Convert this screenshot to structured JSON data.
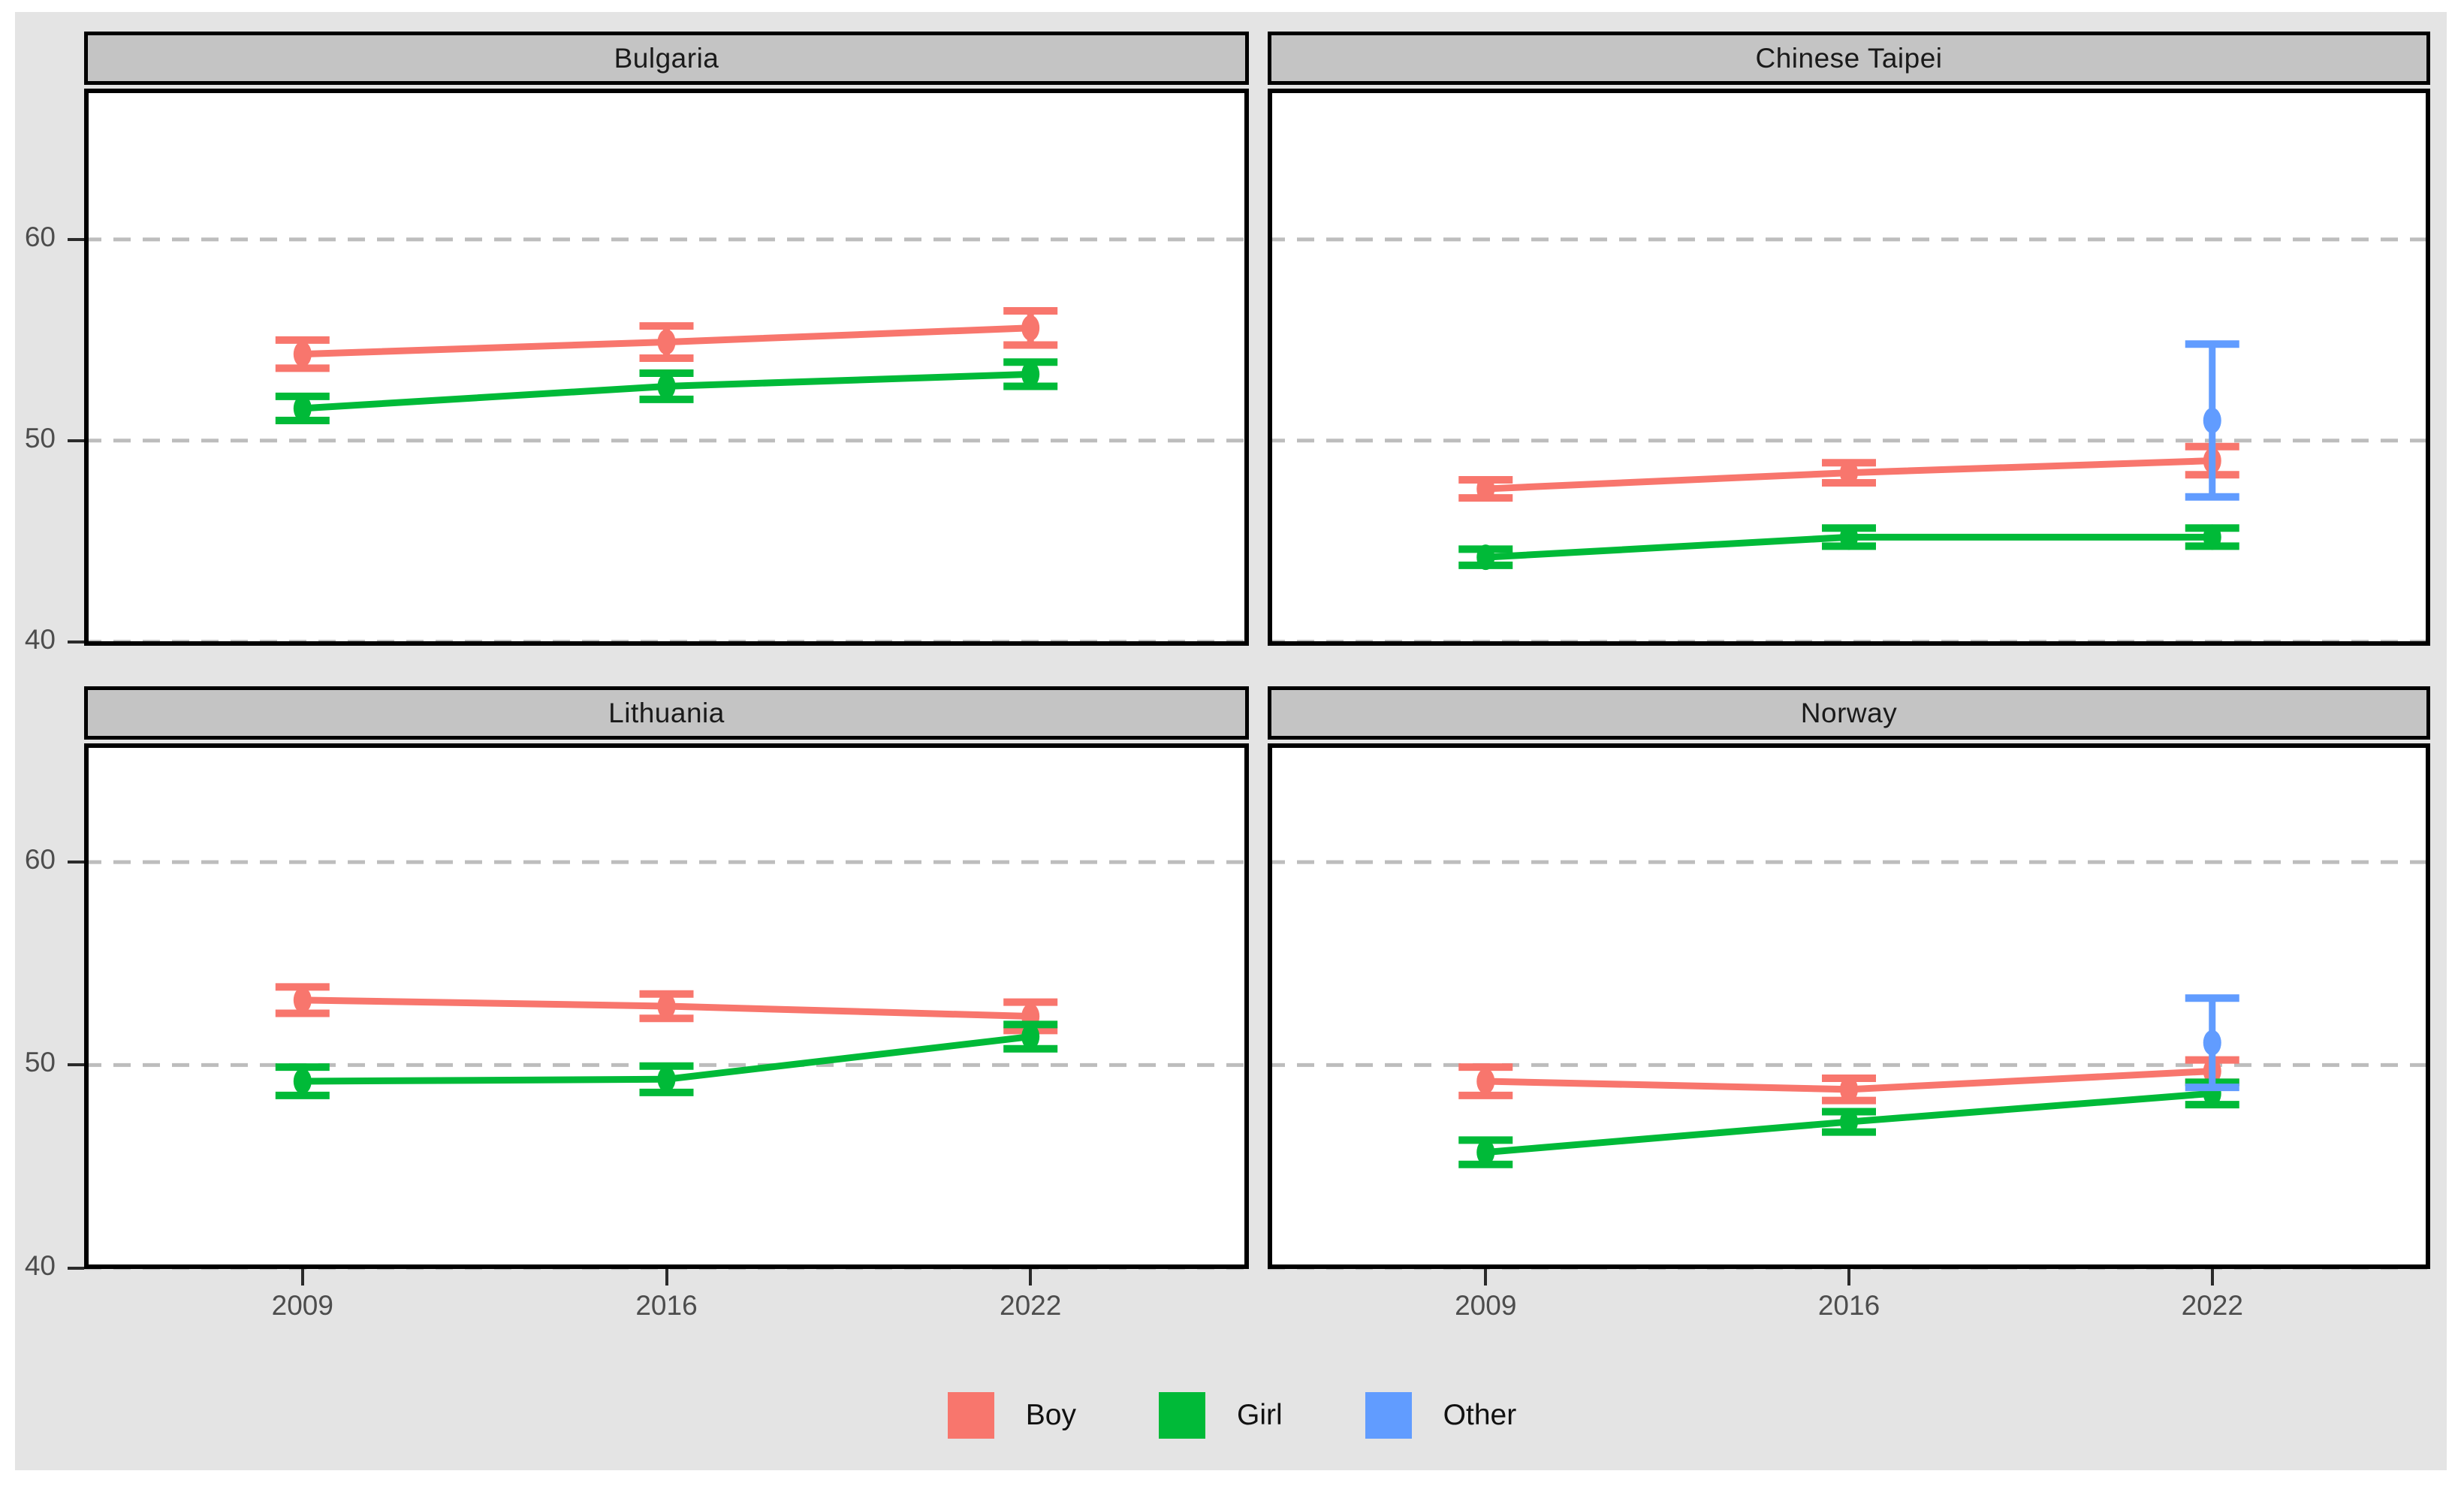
{
  "chart_data": {
    "type": "line",
    "title": "",
    "x_categories": [
      "2009",
      "2016",
      "2022"
    ],
    "y_ticks": [
      "40",
      "50",
      "60"
    ],
    "y_tick_values": [
      40,
      50,
      60
    ],
    "ylim": [
      40,
      67.5
    ],
    "grid": "horizontal dashed gridlines at y=40,50,60",
    "facet_layout": "2x2 grid, shared axes, strip titles on top",
    "legend": {
      "position": "bottom-center",
      "items": [
        {
          "label": "Boy",
          "color": "#F8766D"
        },
        {
          "label": "Girl",
          "color": "#00BA38"
        },
        {
          "label": "Other",
          "color": "#619CFF"
        }
      ]
    },
    "panels": [
      {
        "title": "Bulgaria",
        "series": [
          {
            "name": "Boy",
            "color": "#F8766D",
            "values": [
              54.3,
              54.9,
              55.6
            ],
            "errors": [
              0.7,
              0.8,
              0.85
            ]
          },
          {
            "name": "Girl",
            "color": "#00BA38",
            "values": [
              51.6,
              52.7,
              53.3
            ],
            "errors": [
              0.6,
              0.65,
              0.6
            ]
          }
        ]
      },
      {
        "title": "Chinese Taipei",
        "series": [
          {
            "name": "Boy",
            "color": "#F8766D",
            "values": [
              47.6,
              48.4,
              49.0
            ],
            "errors": [
              0.45,
              0.5,
              0.7
            ]
          },
          {
            "name": "Girl",
            "color": "#00BA38",
            "values": [
              44.2,
              45.2,
              45.2
            ],
            "errors": [
              0.4,
              0.45,
              0.45
            ]
          },
          {
            "name": "Other",
            "color": "#619CFF",
            "values": [
              null,
              null,
              51.0
            ],
            "errors": [
              null,
              null,
              3.8
            ]
          }
        ]
      },
      {
        "title": "Lithuania",
        "series": [
          {
            "name": "Boy",
            "color": "#F8766D",
            "values": [
              53.2,
              52.9,
              52.4
            ],
            "errors": [
              0.65,
              0.6,
              0.7
            ]
          },
          {
            "name": "Girl",
            "color": "#00BA38",
            "values": [
              49.2,
              49.3,
              51.4
            ],
            "errors": [
              0.7,
              0.65,
              0.6
            ]
          }
        ]
      },
      {
        "title": "Norway",
        "series": [
          {
            "name": "Boy",
            "color": "#F8766D",
            "values": [
              49.2,
              48.8,
              49.7
            ],
            "errors": [
              0.7,
              0.55,
              0.55
            ]
          },
          {
            "name": "Girl",
            "color": "#00BA38",
            "values": [
              45.7,
              47.2,
              48.6
            ],
            "errors": [
              0.6,
              0.5,
              0.55
            ]
          },
          {
            "name": "Other",
            "color": "#619CFF",
            "values": [
              null,
              null,
              51.1
            ],
            "errors": [
              null,
              null,
              2.2
            ]
          }
        ]
      }
    ]
  },
  "style_colors": {
    "figure_background": "#E4E4E4",
    "panel_background": "#FFFFFF",
    "strip_background": "#C4C4C4",
    "panel_border": "#000000",
    "gridline": "#BDBDBD",
    "axis_text": "#4D4D4D"
  }
}
